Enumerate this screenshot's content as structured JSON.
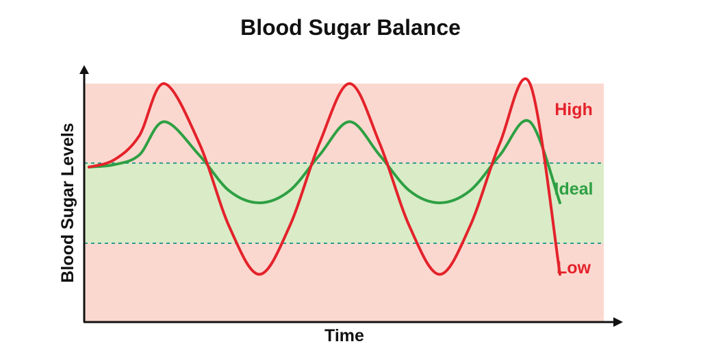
{
  "chart_data": {
    "type": "line",
    "title": "Blood Sugar Balance",
    "xlabel": "Time",
    "ylabel": "Blood Sugar Levels",
    "zones": [
      {
        "name": "High",
        "label": "High",
        "color": "#fbd8cf"
      },
      {
        "name": "Ideal",
        "label": "Ideal",
        "color": "#d9ebc7"
      },
      {
        "name": "Low",
        "label": "Low",
        "color": "#fbd8cf"
      }
    ],
    "threshold_lines": {
      "color": "#2e9c8f",
      "style": "dashed"
    },
    "series": [
      {
        "color": "#e4222b",
        "description": "large swings through high and low zones",
        "x": [
          0,
          0.05,
          0.1,
          0.15,
          0.22,
          0.28,
          0.34,
          0.4,
          0.46,
          0.52,
          0.58,
          0.64,
          0.7,
          0.76,
          0.82,
          0.88,
          0.94
        ],
        "y": [
          0.65,
          0.68,
          0.78,
          1.0,
          0.75,
          0.4,
          0.2,
          0.4,
          0.75,
          1.0,
          0.75,
          0.4,
          0.2,
          0.4,
          0.75,
          1.0,
          0.2
        ]
      },
      {
        "color": "#2ea043",
        "description": "gentle oscillation within ideal zone",
        "x": [
          0,
          0.05,
          0.1,
          0.15,
          0.22,
          0.28,
          0.34,
          0.4,
          0.46,
          0.52,
          0.58,
          0.64,
          0.7,
          0.76,
          0.82,
          0.88,
          0.94
        ],
        "y": [
          0.65,
          0.66,
          0.7,
          0.84,
          0.7,
          0.55,
          0.5,
          0.55,
          0.7,
          0.84,
          0.7,
          0.55,
          0.5,
          0.55,
          0.7,
          0.84,
          0.5
        ]
      }
    ],
    "colors": {
      "axis": "#111111"
    }
  }
}
